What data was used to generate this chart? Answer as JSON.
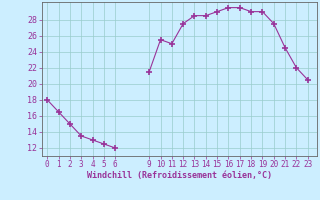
{
  "segments": [
    [
      0,
      1,
      2,
      3,
      4,
      5,
      6
    ],
    [
      9,
      10,
      11,
      12,
      13,
      14,
      15,
      16,
      17,
      18,
      19,
      20,
      21,
      22,
      23
    ]
  ],
  "seg_values": [
    [
      18,
      16.5,
      15,
      13.5,
      13,
      12.5,
      12
    ],
    [
      21.5,
      25.5,
      25,
      27.5,
      28.5,
      28.5,
      29,
      29.5,
      29.5,
      29,
      29,
      27.5,
      24.5,
      22,
      20.5
    ]
  ],
  "line_color": "#993399",
  "marker": "+",
  "marker_size": 4,
  "marker_lw": 1.2,
  "line_width": 0.8,
  "bg_color": "#cceeff",
  "grid_color": "#99cccc",
  "spine_color": "#666666",
  "tick_label_color": "#993399",
  "xlabel": "Windchill (Refroidissement éolien,°C)",
  "xticks": [
    0,
    1,
    2,
    3,
    4,
    5,
    6,
    9,
    10,
    11,
    12,
    13,
    14,
    15,
    16,
    17,
    18,
    19,
    20,
    21,
    22,
    23
  ],
  "yticks": [
    12,
    14,
    16,
    18,
    20,
    22,
    24,
    26,
    28
  ],
  "xlim": [
    -0.5,
    23.8
  ],
  "ylim": [
    11.0,
    30.2
  ]
}
